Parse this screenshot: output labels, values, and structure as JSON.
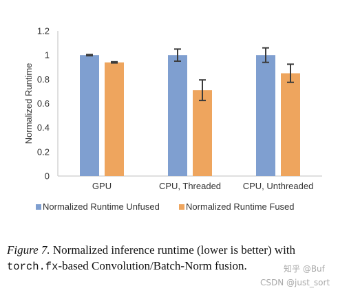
{
  "chart_data": {
    "type": "bar",
    "categories": [
      "GPU",
      "CPU, Threaded",
      "CPU, Unthreaded"
    ],
    "series": [
      {
        "name": "Normalized Runtime Unfused",
        "values": [
          1.0,
          1.0,
          1.0
        ],
        "errors": [
          0.005,
          0.05,
          0.06
        ],
        "color": "#7f9fd0"
      },
      {
        "name": "Normalized Runtime Fused",
        "values": [
          0.94,
          0.71,
          0.85
        ],
        "errors": [
          0.005,
          0.085,
          0.075
        ],
        "color": "#eea55e"
      }
    ],
    "ylabel": "Normalized Runtime",
    "xlabel": "",
    "ylim": [
      0,
      1.2
    ],
    "yticks": [
      0,
      0.2,
      0.4,
      0.6,
      0.8,
      1,
      1.2
    ],
    "ytick_labels": [
      "0",
      "0.2",
      "0.4",
      "0.6",
      "0.8",
      "1",
      "1.2"
    ],
    "legend_position": "bottom",
    "grid": false
  },
  "caption": {
    "figure_label": "Figure 7.",
    "text_part1": " Normalized inference runtime (lower is better) with ",
    "code": "torch.fx",
    "text_part2": "-based Convolution/Batch-Norm fusion."
  },
  "watermark": {
    "line1": "知乎 @Buf",
    "line2": "CSDN @just_sort"
  }
}
